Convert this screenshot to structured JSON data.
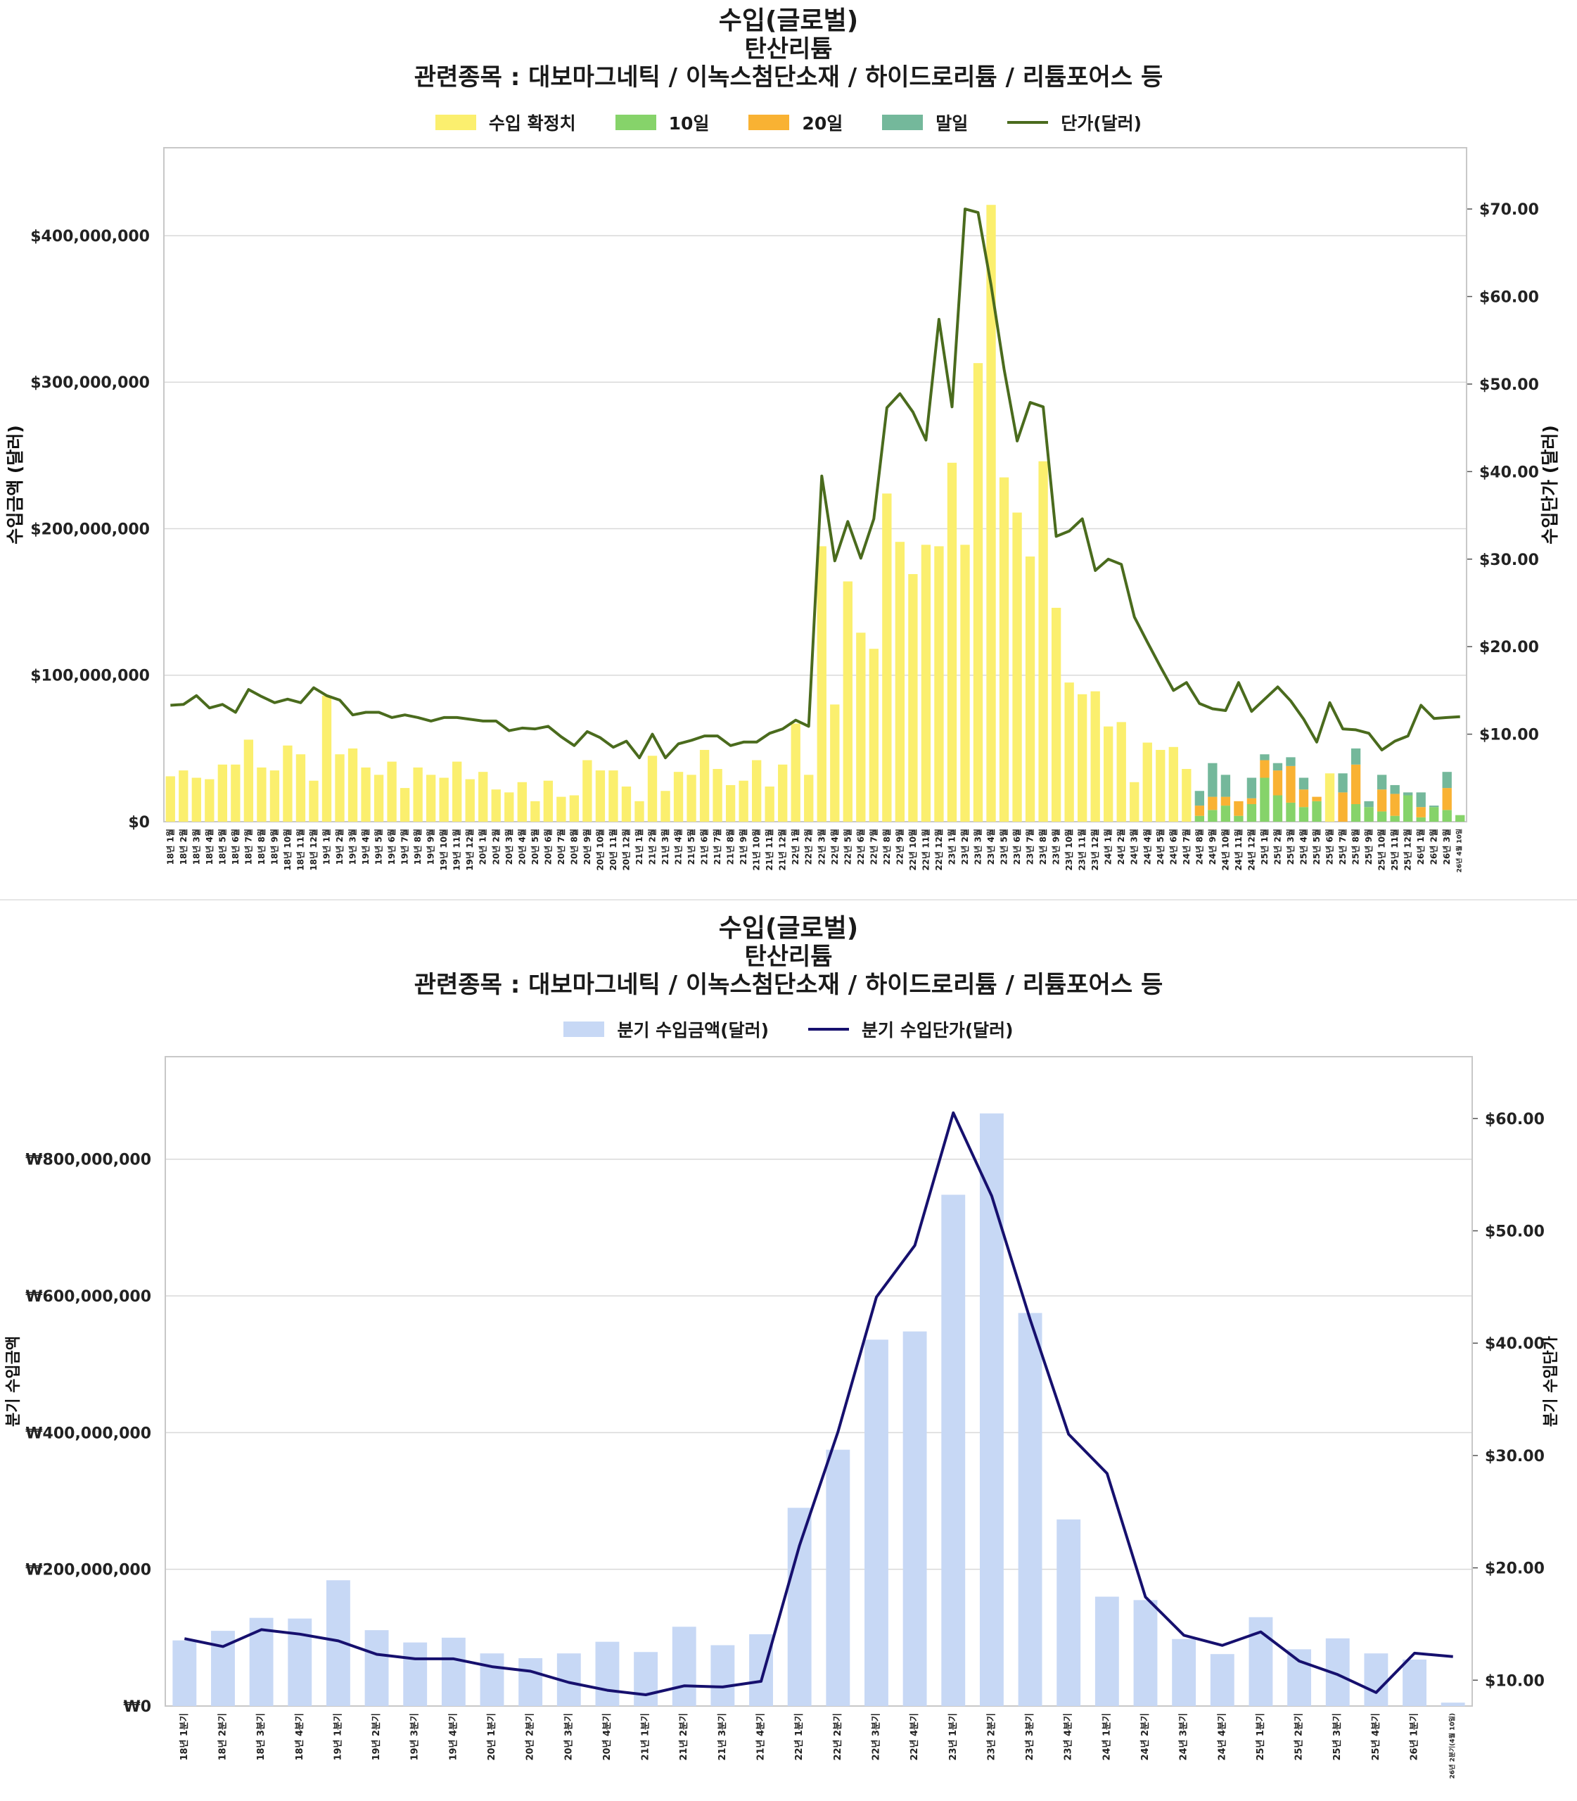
{
  "top_chart": {
    "title": "수입(글로벌)",
    "subtitle": "탄산리튬",
    "related": "관련종목 : 대보마그네틱 / 이녹스첨단소재 / 하이드로리튬 / 리튬포어스 등",
    "legend": {
      "confirmed": "수입 확정치",
      "d10": "10일",
      "d20": "20일",
      "end": "말일",
      "price": "단가(달러)"
    },
    "ylabel_left": "수입금액 (달러)",
    "ylabel_right": "수입단가 (달러)",
    "left_ticks": [
      "$0",
      "$100,000,000",
      "$200,000,000",
      "$300,000,000",
      "$400,000,000"
    ],
    "right_ticks": [
      "$10.00",
      "$20.00",
      "$30.00",
      "$40.00",
      "$50.00",
      "$60.00",
      "$70.00"
    ],
    "colors": {
      "confirmed": "#fbef6e",
      "d10": "#86d36a",
      "d20": "#f9b233",
      "end": "#74b89b",
      "price": "#4a6b1d"
    }
  },
  "bottom_chart": {
    "title": "수입(글로벌)",
    "subtitle": "탄산리튬",
    "related": "관련종목 : 대보마그네틱 / 이녹스첨단소재 / 하이드로리튬 / 리튬포어스 등",
    "legend": {
      "amount": "분기 수입금액(달러)",
      "price": "분기 수입단가(달러)"
    },
    "ylabel_left": "분기 수입금액",
    "ylabel_right": "분기 수입단가",
    "left_ticks": [
      "₩0",
      "₩200,000,000",
      "₩400,000,000",
      "₩600,000,000",
      "₩800,000,000"
    ],
    "right_ticks": [
      "$10.00",
      "$20.00",
      "$30.00",
      "$40.00",
      "$50.00",
      "$60.00"
    ],
    "colors": {
      "amount": "#c7d8f5",
      "price": "#16106e"
    }
  },
  "chart_data": [
    {
      "type": "bar",
      "title": "수입(글로벌) 탄산리튬",
      "ylabel": "수입금액 (달러)",
      "y2label": "수입단가 (달러)",
      "ylim": [
        0,
        460000000
      ],
      "y2lim": [
        0,
        77
      ],
      "categories": [
        "18년 1월",
        "18년 2월",
        "18년 3월",
        "18년 4월",
        "18년 5월",
        "18년 6월",
        "18년 7월",
        "18년 8월",
        "18년 9월",
        "18년 10월",
        "18년 11월",
        "18년 12월",
        "19년 1월",
        "19년 2월",
        "19년 3월",
        "19년 4월",
        "19년 5월",
        "19년 6월",
        "19년 7월",
        "19년 8월",
        "19년 9월",
        "19년 10월",
        "19년 11월",
        "19년 12월",
        "20년 1월",
        "20년 2월",
        "20년 3월",
        "20년 4월",
        "20년 5월",
        "20년 6월",
        "20년 7월",
        "20년 8월",
        "20년 9월",
        "20년 10월",
        "20년 11월",
        "20년 12월",
        "21년 1월",
        "21년 2월",
        "21년 3월",
        "21년 4월",
        "21년 5월",
        "21년 6월",
        "21년 7월",
        "21년 8월",
        "21년 9월",
        "21년 10월",
        "21년 11월",
        "21년 12월",
        "22년 1월",
        "22년 2월",
        "22년 3월",
        "22년 4월",
        "22년 5월",
        "22년 6월",
        "22년 7월",
        "22년 8월",
        "22년 9월",
        "22년 10월",
        "22년 11월",
        "22년 12월",
        "23년 1월",
        "23년 2월",
        "23년 3월",
        "23년 4월",
        "23년 5월",
        "23년 6월",
        "23년 7월",
        "23년 8월",
        "23년 9월",
        "23년 10월",
        "23년 11월",
        "23년 12월",
        "24년 1월",
        "24년 2월",
        "24년 3월",
        "24년 4월",
        "24년 5월",
        "24년 6월",
        "24년 7월",
        "24년 8월",
        "24년 9월",
        "24년 10월",
        "24년 11월",
        "24년 12월",
        "25년 1월",
        "25년 2월",
        "25년 3월",
        "25년 4월",
        "25년 5월",
        "25년 6월",
        "25년 7월",
        "25년 8월",
        "25년 9월",
        "25년 10월",
        "25년 11월",
        "25년 12월",
        "26년 1월",
        "26년 2월",
        "26년 3월",
        "26년 4월 10일"
      ],
      "series": [
        {
          "name": "수입 확정치",
          "values": [
            31000000,
            35000000,
            30000000,
            29000000,
            39000000,
            39000000,
            56000000,
            37000000,
            35000000,
            52000000,
            46000000,
            28000000,
            86000000,
            46000000,
            50000000,
            37000000,
            32000000,
            41000000,
            23000000,
            37000000,
            32000000,
            30000000,
            41000000,
            29000000,
            34000000,
            22000000,
            20000000,
            27000000,
            14000000,
            28000000,
            17000000,
            18000000,
            42000000,
            35000000,
            35000000,
            24000000,
            14000000,
            45000000,
            21000000,
            34000000,
            32000000,
            49000000,
            36000000,
            25000000,
            28000000,
            42000000,
            24000000,
            39000000,
            67000000,
            32000000,
            188000000,
            80000000,
            164000000,
            129000000,
            118000000,
            224000000,
            191000000,
            169000000,
            189000000,
            188000000,
            245000000,
            189000000,
            313000000,
            421000000,
            235000000,
            211000000,
            181000000,
            246000000,
            146000000,
            95000000,
            87000000,
            89000000,
            65000000,
            68000000,
            27000000,
            54000000,
            49000000,
            51000000,
            36000000,
            0,
            0,
            0,
            0,
            0,
            0,
            0,
            0,
            0,
            0,
            33000000,
            0,
            0,
            0,
            0,
            0,
            0,
            0,
            0,
            0,
            0
          ]
        },
        {
          "name": "10일",
          "values": [
            0,
            0,
            0,
            0,
            0,
            0,
            0,
            0,
            0,
            0,
            0,
            0,
            0,
            0,
            0,
            0,
            0,
            0,
            0,
            0,
            0,
            0,
            0,
            0,
            0,
            0,
            0,
            0,
            0,
            0,
            0,
            0,
            0,
            0,
            0,
            0,
            0,
            0,
            0,
            0,
            0,
            0,
            0,
            0,
            0,
            0,
            0,
            0,
            0,
            0,
            0,
            0,
            0,
            0,
            0,
            0,
            0,
            0,
            0,
            0,
            0,
            0,
            0,
            0,
            0,
            0,
            0,
            0,
            0,
            0,
            0,
            0,
            0,
            0,
            0,
            0,
            0,
            0,
            0,
            4000000,
            8000000,
            11000000,
            4000000,
            12000000,
            30000000,
            18000000,
            13000000,
            10000000,
            14000000,
            0,
            0,
            12000000,
            10000000,
            7000000,
            4000000,
            18000000,
            3000000,
            10000000,
            8000000,
            4500000
          ]
        },
        {
          "name": "20일",
          "values": [
            0,
            0,
            0,
            0,
            0,
            0,
            0,
            0,
            0,
            0,
            0,
            0,
            0,
            0,
            0,
            0,
            0,
            0,
            0,
            0,
            0,
            0,
            0,
            0,
            0,
            0,
            0,
            0,
            0,
            0,
            0,
            0,
            0,
            0,
            0,
            0,
            0,
            0,
            0,
            0,
            0,
            0,
            0,
            0,
            0,
            0,
            0,
            0,
            0,
            0,
            0,
            0,
            0,
            0,
            0,
            0,
            0,
            0,
            0,
            0,
            0,
            0,
            0,
            0,
            0,
            0,
            0,
            0,
            0,
            0,
            0,
            0,
            0,
            0,
            0,
            0,
            0,
            0,
            0,
            7000000,
            9000000,
            6000000,
            10000000,
            4000000,
            12000000,
            17000000,
            25000000,
            12000000,
            3000000,
            0,
            20000000,
            27000000,
            0,
            15000000,
            15000000,
            0,
            7000000,
            0,
            15000000,
            0
          ]
        },
        {
          "name": "말일",
          "values": [
            0,
            0,
            0,
            0,
            0,
            0,
            0,
            0,
            0,
            0,
            0,
            0,
            0,
            0,
            0,
            0,
            0,
            0,
            0,
            0,
            0,
            0,
            0,
            0,
            0,
            0,
            0,
            0,
            0,
            0,
            0,
            0,
            0,
            0,
            0,
            0,
            0,
            0,
            0,
            0,
            0,
            0,
            0,
            0,
            0,
            0,
            0,
            0,
            0,
            0,
            0,
            0,
            0,
            0,
            0,
            0,
            0,
            0,
            0,
            0,
            0,
            0,
            0,
            0,
            0,
            0,
            0,
            0,
            0,
            0,
            0,
            0,
            0,
            0,
            0,
            0,
            0,
            0,
            0,
            10000000,
            23000000,
            15000000,
            0,
            14000000,
            4000000,
            5000000,
            6000000,
            8000000,
            0,
            0,
            13000000,
            11000000,
            4000000,
            10000000,
            6000000,
            2000000,
            10000000,
            1000000,
            11000000,
            0
          ]
        },
        {
          "name": "단가(달러)",
          "axis": "right",
          "values": [
            13.3,
            13.4,
            14.4,
            13.0,
            13.4,
            12.5,
            15.1,
            14.3,
            13.6,
            14.0,
            13.6,
            15.3,
            14.4,
            13.9,
            12.2,
            12.5,
            12.5,
            11.9,
            12.2,
            11.9,
            11.5,
            11.9,
            11.9,
            11.7,
            11.5,
            11.5,
            10.4,
            10.7,
            10.6,
            10.9,
            9.7,
            8.7,
            10.3,
            9.6,
            8.5,
            9.2,
            7.3,
            10.0,
            7.3,
            8.9,
            9.3,
            9.8,
            9.8,
            8.7,
            9.1,
            9.1,
            10.1,
            10.6,
            11.6,
            10.9,
            39.5,
            29.8,
            34.3,
            30.1,
            34.6,
            47.3,
            48.9,
            46.8,
            43.6,
            57.4,
            47.4,
            70.0,
            69.6,
            61.3,
            51.7,
            43.5,
            47.9,
            47.4,
            32.6,
            33.2,
            34.6,
            28.7,
            30.0,
            29.4,
            23.4,
            20.5,
            17.7,
            15.0,
            15.9,
            13.5,
            12.9,
            12.7,
            15.9,
            12.6,
            14.0,
            15.4,
            13.8,
            11.7,
            9.1,
            13.6,
            10.6,
            10.5,
            10.1,
            8.2,
            9.2,
            9.8,
            13.3,
            11.8,
            11.9,
            12.0
          ]
        }
      ]
    },
    {
      "type": "bar",
      "title": "수입(글로벌) 탄산리튬",
      "ylabel": "분기 수입금액",
      "y2label": "분기 수입단가",
      "ylim": [
        0,
        950000000
      ],
      "y2lim": [
        7.7,
        65.5
      ],
      "categories": [
        "18년 1분기",
        "18년 2분기",
        "18년 3분기",
        "18년 4분기",
        "19년 1분기",
        "19년 2분기",
        "19년 3분기",
        "19년 4분기",
        "20년 1분기",
        "20년 2분기",
        "20년 3분기",
        "20년 4분기",
        "21년 1분기",
        "21년 2분기",
        "21년 3분기",
        "21년 4분기",
        "22년 1분기",
        "22년 2분기",
        "22년 3분기",
        "22년 4분기",
        "23년 1분기",
        "23년 2분기",
        "23년 3분기",
        "23년 4분기",
        "24년 1분기",
        "24년 2분기",
        "24년 3분기",
        "24년 4분기",
        "25년 1분기",
        "25년 2분기",
        "25년 3분기",
        "25년 4분기",
        "26년 1분기",
        "26년 2분기(4월 10일)"
      ],
      "series": [
        {
          "name": "분기 수입금액(달러)",
          "values": [
            96000000,
            110000000,
            129000000,
            128000000,
            184000000,
            111000000,
            93000000,
            100000000,
            77000000,
            70000000,
            77000000,
            94000000,
            79000000,
            116000000,
            89000000,
            105000000,
            290000000,
            375000000,
            536000000,
            548000000,
            748000000,
            867000000,
            575000000,
            273000000,
            160000000,
            155000000,
            98000000,
            76000000,
            130000000,
            83000000,
            99000000,
            77000000,
            68000000,
            5000000
          ]
        },
        {
          "name": "분기 수입단가(달러)",
          "axis": "right",
          "values": [
            13.7,
            13.0,
            14.5,
            14.1,
            13.5,
            12.3,
            11.9,
            11.9,
            11.2,
            10.8,
            9.8,
            9.1,
            8.7,
            9.5,
            9.4,
            9.9,
            22.0,
            32.1,
            44.1,
            48.7,
            60.5,
            53.1,
            42.1,
            31.9,
            28.4,
            17.4,
            14.0,
            13.1,
            14.3,
            11.7,
            10.5,
            8.9,
            12.4,
            12.1
          ]
        }
      ]
    }
  ]
}
